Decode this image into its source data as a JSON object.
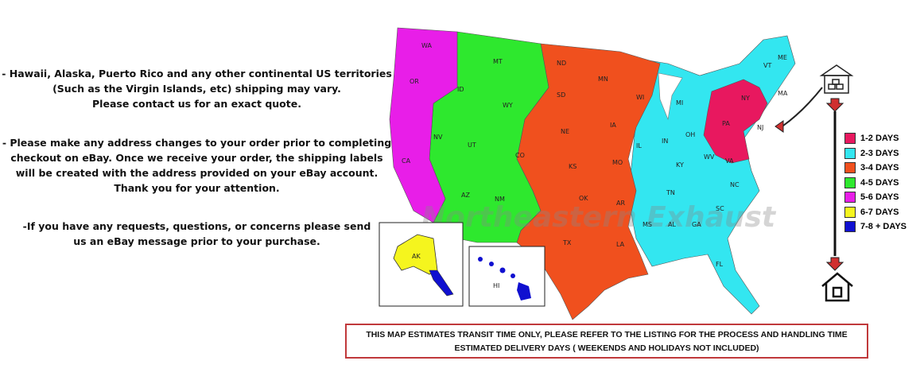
{
  "notes": [
    [
      "- Hawaii, Alaska, Puerto Rico and any other continental US territories",
      "(Such as the Virgin Islands, etc) shipping may vary.",
      "Please contact us for an exact quote."
    ],
    [
      "- Please make any address changes to your order prior to completing",
      "checkout on eBay. Once we receive your order, the shipping labels",
      "will be created with the address provided on your eBay account.",
      "Thank you for your attention."
    ],
    [
      "-If you have any requests, questions, or concerns please send",
      "us an eBay message prior to your purchase."
    ]
  ],
  "watermark": "Northeastern Exhaust",
  "legend": [
    {
      "label": "1-2 DAYS",
      "color": "#e8185f"
    },
    {
      "label": "2-3 DAYS",
      "color": "#33e6f0"
    },
    {
      "label": "3-4 DAYS",
      "color": "#f0501e"
    },
    {
      "label": "4-5 DAYS",
      "color": "#2ee82e"
    },
    {
      "label": "5-6 DAYS",
      "color": "#e81ee8"
    },
    {
      "label": "6-7 DAYS",
      "color": "#f5f51e"
    },
    {
      "label": "7-8 + DAYS",
      "color": "#1010d0"
    }
  ],
  "states": {
    "WA": "WA",
    "OR": "OR",
    "CA": "CA",
    "NV": "NV",
    "ID": "ID",
    "MT": "MT",
    "WY": "WY",
    "UT": "UT",
    "AZ": "AZ",
    "NM": "NM",
    "CO": "CO",
    "ND": "ND",
    "SD": "SD",
    "NE": "NE",
    "KS": "KS",
    "OK": "OK",
    "TX": "TX",
    "MN": "MN",
    "IA": "IA",
    "MO": "MO",
    "AR": "AR",
    "LA": "LA",
    "WI": "WI",
    "IL": "IL",
    "MI": "MI",
    "IN": "IN",
    "OH": "OH",
    "KY": "KY",
    "TN": "TN",
    "MS": "MS",
    "AL": "AL",
    "GA": "GA",
    "FL": "FL",
    "SC": "SC",
    "NC": "NC",
    "VA": "VA",
    "WV": "WV",
    "PA": "PA",
    "NY": "NY",
    "NJ": "NJ",
    "VT": "VT",
    "ME": "ME",
    "MA": "MA",
    "AK": "AK",
    "HI": "HI"
  },
  "notice": {
    "line1": "THIS MAP ESTIMATES TRANSIT TIME ONLY, PLEASE REFER TO THE LISTING FOR THE PROCESS AND HANDLING TIME",
    "line2": "ESTIMATED DELIVERY DAYS ( WEEKENDS AND HOLIDAYS NOT INCLUDED)"
  }
}
